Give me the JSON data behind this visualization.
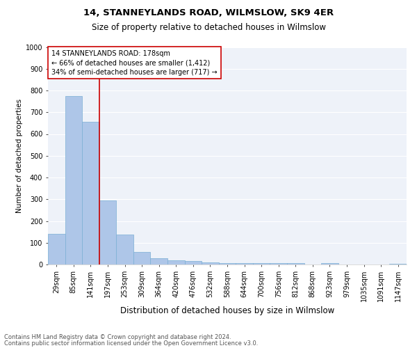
{
  "title": "14, STANNEYLANDS ROAD, WILMSLOW, SK9 4ER",
  "subtitle": "Size of property relative to detached houses in Wilmslow",
  "xlabel": "Distribution of detached houses by size in Wilmslow",
  "ylabel": "Number of detached properties",
  "categories": [
    "29sqm",
    "85sqm",
    "141sqm",
    "197sqm",
    "253sqm",
    "309sqm",
    "364sqm",
    "420sqm",
    "476sqm",
    "532sqm",
    "588sqm",
    "644sqm",
    "700sqm",
    "756sqm",
    "812sqm",
    "868sqm",
    "923sqm",
    "979sqm",
    "1035sqm",
    "1091sqm",
    "1147sqm"
  ],
  "values": [
    140,
    775,
    655,
    295,
    137,
    57,
    28,
    20,
    15,
    10,
    8,
    5,
    7,
    5,
    5,
    0,
    8,
    0,
    0,
    0,
    2
  ],
  "bar_color": "#aec6e8",
  "bar_edge_color": "#7aafd4",
  "ylim": [
    0,
    1000
  ],
  "yticks": [
    0,
    100,
    200,
    300,
    400,
    500,
    600,
    700,
    800,
    900,
    1000
  ],
  "red_line_index": 3,
  "annotation_line1": "14 STANNEYLANDS ROAD: 178sqm",
  "annotation_line2": "← 66% of detached houses are smaller (1,412)",
  "annotation_line3": "34% of semi-detached houses are larger (717) →",
  "annotation_box_color": "#ffffff",
  "annotation_box_edge": "#cc0000",
  "red_line_color": "#cc0000",
  "footer_line1": "Contains HM Land Registry data © Crown copyright and database right 2024.",
  "footer_line2": "Contains public sector information licensed under the Open Government Licence v3.0.",
  "bg_color": "#eef2f9",
  "title_fontsize": 9.5,
  "subtitle_fontsize": 8.5,
  "xlabel_fontsize": 8.5,
  "ylabel_fontsize": 7.5,
  "tick_fontsize": 7,
  "annotation_fontsize": 7,
  "footer_fontsize": 6
}
